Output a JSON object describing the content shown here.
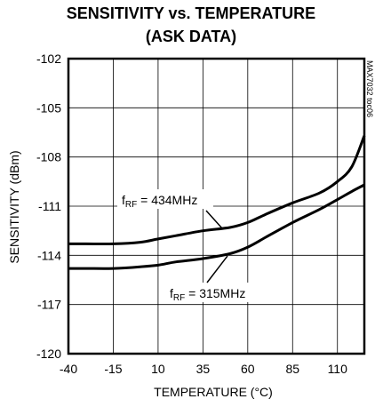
{
  "chart_data": {
    "type": "line",
    "title": "SENSITIVITY vs. TEMPERATURE",
    "subtitle": "(ASK DATA)",
    "xlabel": "TEMPERATURE (°C)",
    "ylabel": "SENSITIVITY (dBm)",
    "xlim": [
      -40,
      125
    ],
    "ylim": [
      -120,
      -102
    ],
    "xticks": [
      -40,
      -15,
      10,
      35,
      60,
      85,
      110
    ],
    "yticks": [
      -102,
      -105,
      -108,
      -111,
      -114,
      -117,
      -120
    ],
    "grid": true,
    "series": [
      {
        "name": "434MHz",
        "x": [
          -40,
          -30,
          -15,
          0,
          10,
          20,
          35,
          50,
          60,
          70,
          85,
          100,
          110,
          118,
          125
        ],
        "y": [
          -113.3,
          -113.3,
          -113.3,
          -113.2,
          -113.0,
          -112.8,
          -112.5,
          -112.3,
          -112.0,
          -111.5,
          -110.8,
          -110.2,
          -109.5,
          -108.6,
          -106.7
        ]
      },
      {
        "name": "315MHz",
        "x": [
          -40,
          -30,
          -15,
          0,
          10,
          20,
          35,
          50,
          60,
          70,
          85,
          100,
          110,
          118,
          125
        ],
        "y": [
          -114.8,
          -114.8,
          -114.8,
          -114.7,
          -114.6,
          -114.4,
          -114.2,
          -113.9,
          -113.5,
          -112.9,
          -112.0,
          -111.2,
          -110.6,
          -110.1,
          -109.7
        ]
      }
    ],
    "annotations": [
      {
        "prefix": "f",
        "sub": "RF",
        "text": " = 434MHz"
      },
      {
        "prefix": "f",
        "sub": "RF",
        "text": " = 315MHz"
      }
    ],
    "watermark": "MAX7032 toc06"
  }
}
